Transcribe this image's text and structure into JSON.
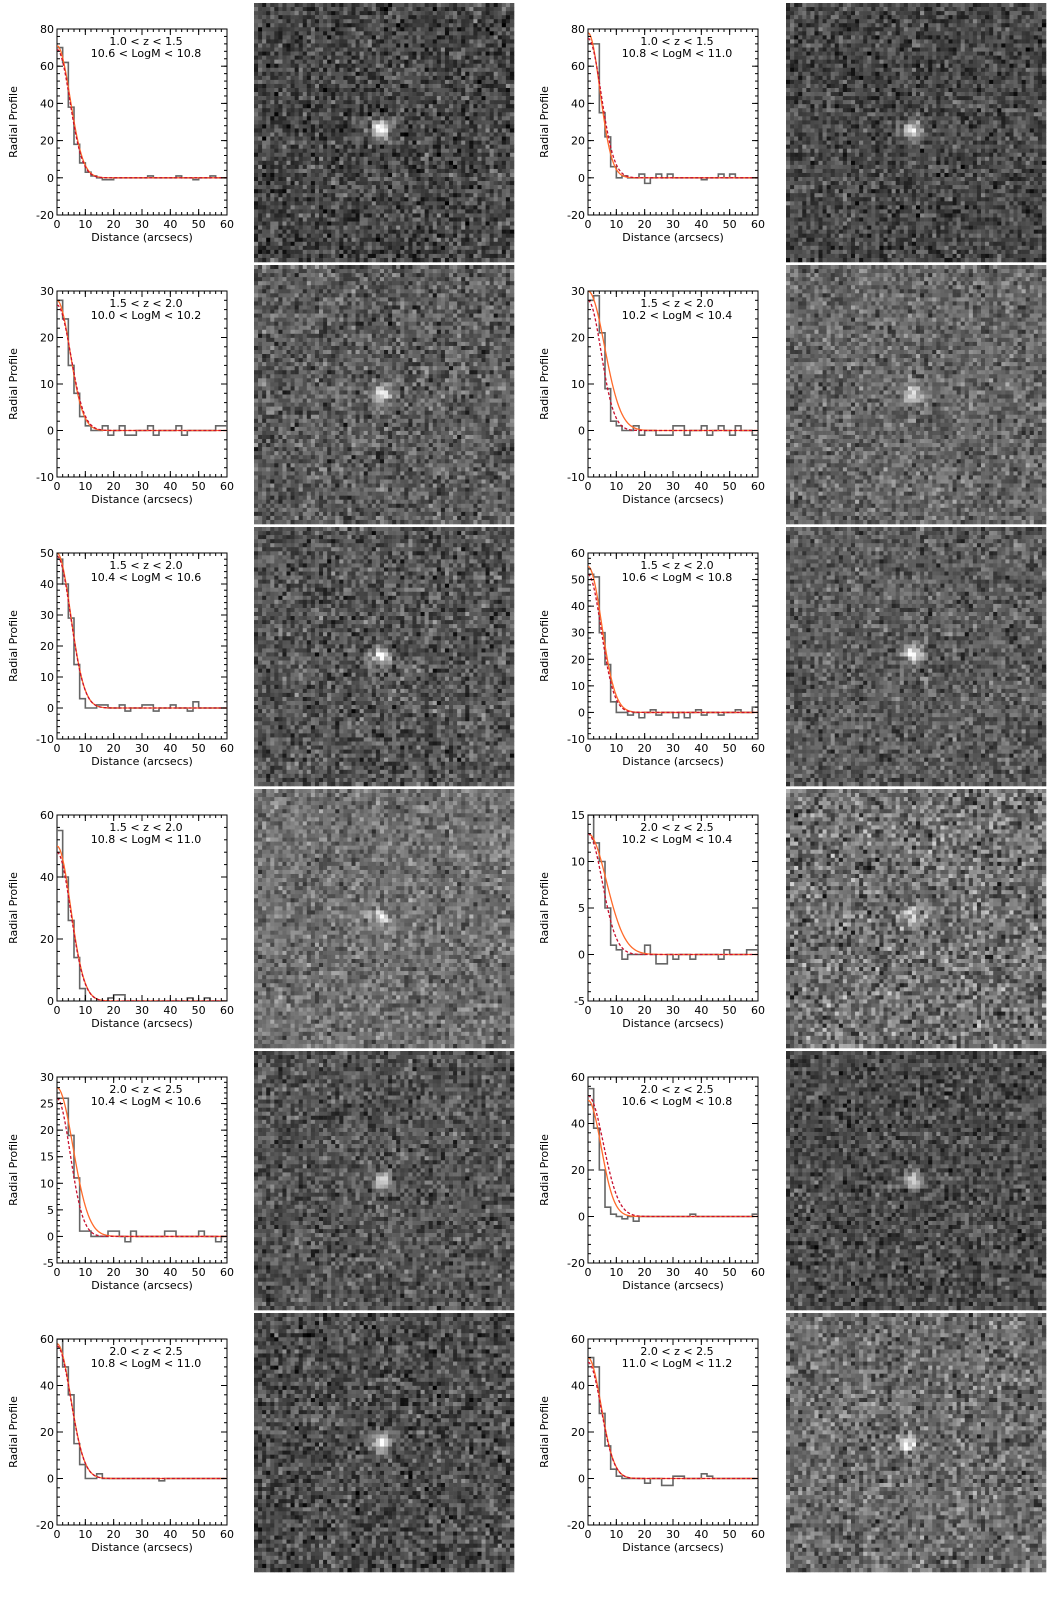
{
  "chart_data": {
    "type": "line",
    "xlabel": "Distance (arcsecs)",
    "ylabel": "Radial Profile",
    "x_ticks": [
      0,
      10,
      20,
      30,
      40,
      50,
      60
    ],
    "xlim": [
      0,
      60
    ],
    "panels": [
      {
        "label_z": "1.0 < z <  1.5",
        "label_m": "10.6 < LogM < 10.8",
        "ylim": [
          -20,
          80
        ],
        "y_ticks": [
          -20,
          0,
          20,
          40,
          60,
          80
        ],
        "histogram": [
          70,
          62,
          38,
          18,
          8,
          3,
          1,
          0,
          -1,
          -1,
          0,
          0,
          0,
          0,
          0,
          0,
          1,
          0,
          0,
          0,
          0,
          1,
          0,
          0,
          -1,
          0,
          0,
          1,
          0,
          0
        ],
        "model_solid": {
          "amplitude": 71,
          "sigma": 4.6
        },
        "model_dashed": {
          "amplitude": 69,
          "sigma": 4.5
        },
        "stamp": {
          "brightness": 0.28,
          "contrast": 0.22,
          "peak": 0.8,
          "source_x": 0.49,
          "source_y": 0.49
        }
      },
      {
        "label_z": "1.0 < z <  1.5",
        "label_m": "10.8 < LogM < 11.0",
        "ylim": [
          -20,
          80
        ],
        "y_ticks": [
          -20,
          0,
          20,
          40,
          60,
          80
        ],
        "histogram": [
          72,
          72,
          35,
          22,
          6,
          0,
          1,
          0,
          0,
          2,
          -3,
          0,
          2,
          0,
          2,
          0,
          0,
          0,
          0,
          0,
          -1,
          0,
          0,
          2,
          0,
          2,
          0,
          0,
          0,
          0
        ],
        "model_solid": {
          "amplitude": 78,
          "sigma": 4.2
        },
        "model_dashed": {
          "amplitude": 75,
          "sigma": 4.6
        },
        "stamp": {
          "brightness": 0.28,
          "contrast": 0.2,
          "peak": 0.7,
          "source_x": 0.49,
          "source_y": 0.49
        }
      },
      {
        "label_z": "1.5 < z <  2.0",
        "label_m": "10.0 < LogM < 10.2",
        "ylim": [
          -10,
          30
        ],
        "y_ticks": [
          -10,
          0,
          10,
          20,
          30
        ],
        "histogram": [
          28,
          24,
          14,
          8,
          3,
          1,
          0,
          0,
          1,
          -1,
          0,
          1,
          -1,
          -1,
          0,
          0,
          1,
          -1,
          0,
          0,
          0,
          1,
          -1,
          0,
          0,
          0,
          0,
          0,
          1,
          1
        ],
        "model_solid": {
          "amplitude": 28,
          "sigma": 4.6
        },
        "model_dashed": {
          "amplitude": 27,
          "sigma": 4.8
        },
        "stamp": {
          "brightness": 0.36,
          "contrast": 0.22,
          "peak": 0.6,
          "source_x": 0.49,
          "source_y": 0.5
        }
      },
      {
        "label_z": "1.5 < z <  2.0",
        "label_m": "10.2 < LogM < 10.4",
        "ylim": [
          -10,
          30
        ],
        "y_ticks": [
          -10,
          0,
          10,
          20,
          30
        ],
        "histogram": [
          28,
          29,
          21,
          9,
          2,
          1,
          0,
          0,
          1,
          -1,
          0,
          0,
          -1,
          -1,
          -1,
          1,
          1,
          -1,
          0,
          0,
          1,
          -1,
          0,
          1,
          0,
          -1,
          1,
          0,
          0,
          -1
        ],
        "model_solid": {
          "amplitude": 30,
          "sigma": 5.8
        },
        "model_dashed": {
          "amplitude": 28,
          "sigma": 4.6
        },
        "stamp": {
          "brightness": 0.4,
          "contrast": 0.2,
          "peak": 0.5,
          "source_x": 0.49,
          "source_y": 0.5
        }
      },
      {
        "label_z": "1.5 < z <  2.0",
        "label_m": "10.4 < LogM < 10.6",
        "ylim": [
          -10,
          50
        ],
        "y_ticks": [
          -10,
          0,
          10,
          20,
          30,
          40,
          50
        ],
        "histogram": [
          48,
          40,
          29,
          14,
          3,
          0,
          0,
          1,
          1,
          0,
          0,
          1,
          -1,
          0,
          0,
          1,
          1,
          -1,
          0,
          0,
          1,
          0,
          0,
          -1,
          2,
          0,
          0,
          0,
          0,
          0
        ],
        "model_solid": {
          "amplitude": 50,
          "sigma": 4.8
        },
        "model_dashed": {
          "amplitude": 49,
          "sigma": 4.8
        },
        "stamp": {
          "brightness": 0.33,
          "contrast": 0.22,
          "peak": 0.7,
          "source_x": 0.49,
          "source_y": 0.5
        }
      },
      {
        "label_z": "1.5 < z <  2.0",
        "label_m": "10.6 < LogM < 10.8",
        "ylim": [
          -10,
          60
        ],
        "y_ticks": [
          -10,
          0,
          10,
          20,
          30,
          40,
          50,
          60
        ],
        "histogram": [
          52,
          51,
          30,
          18,
          4,
          0,
          0,
          -1,
          0,
          -2,
          0,
          1,
          -1,
          0,
          0,
          -2,
          0,
          -2,
          0,
          1,
          -1,
          0,
          0,
          -1,
          0,
          0,
          1,
          0,
          0,
          2
        ],
        "model_solid": {
          "amplitude": 55,
          "sigma": 4.8
        },
        "model_dashed": {
          "amplitude": 52,
          "sigma": 4.6
        },
        "stamp": {
          "brightness": 0.36,
          "contrast": 0.2,
          "peak": 0.6,
          "source_x": 0.49,
          "source_y": 0.49
        }
      },
      {
        "label_z": "1.5 < z <  2.0",
        "label_m": "10.8 < LogM < 11.0",
        "ylim": [
          0,
          60
        ],
        "y_ticks": [
          0,
          20,
          40,
          60
        ],
        "histogram": [
          55,
          40,
          26,
          14,
          4,
          0,
          0,
          0,
          0,
          1,
          2,
          2,
          0,
          0,
          0,
          0,
          0,
          0,
          0,
          0,
          0,
          0,
          0,
          1,
          0,
          0,
          1,
          0,
          0,
          0
        ],
        "model_solid": {
          "amplitude": 50,
          "sigma": 4.8
        },
        "model_dashed": {
          "amplitude": 48,
          "sigma": 4.8
        },
        "stamp": {
          "brightness": 0.44,
          "contrast": 0.2,
          "peak": 0.4,
          "source_x": 0.49,
          "source_y": 0.5
        }
      },
      {
        "label_z": "2.0 < z <  2.5",
        "label_m": "10.2 < LogM < 10.4",
        "ylim": [
          -5,
          15
        ],
        "y_ticks": [
          -5,
          0,
          5,
          10,
          15
        ],
        "histogram": [
          15,
          12,
          10,
          5,
          1,
          0.5,
          -0.5,
          0,
          0,
          0,
          1,
          0,
          -1,
          -1,
          0,
          -0.5,
          0,
          0,
          -0.5,
          0,
          0,
          0,
          0,
          -0.5,
          0.5,
          0,
          0,
          0,
          0.5,
          0.5
        ],
        "model_solid": {
          "amplitude": 13,
          "sigma": 6.5
        },
        "model_dashed": {
          "amplitude": 13,
          "sigma": 5
        },
        "stamp": {
          "brightness": 0.44,
          "contrast": 0.28,
          "peak": 0.4,
          "source_x": 0.49,
          "source_y": 0.49
        }
      },
      {
        "label_z": "2.0 < z <  2.5",
        "label_m": "10.4 < LogM < 10.6",
        "ylim": [
          -5,
          30
        ],
        "y_ticks": [
          -5,
          0,
          5,
          10,
          15,
          20,
          25,
          30
        ],
        "histogram": [
          26,
          26,
          19,
          11,
          1,
          1,
          0,
          0,
          0,
          1,
          1,
          0,
          -1,
          1,
          0,
          0,
          0,
          0,
          0,
          1,
          1,
          0,
          0,
          0,
          0,
          1,
          0,
          0,
          -1,
          0
        ],
        "model_solid": {
          "amplitude": 28,
          "sigma": 5.6
        },
        "model_dashed": {
          "amplitude": 26,
          "sigma": 4.6
        },
        "stamp": {
          "brightness": 0.33,
          "contrast": 0.2,
          "peak": 0.5,
          "source_x": 0.49,
          "source_y": 0.5
        }
      },
      {
        "label_z": "2.0 < z <  2.5",
        "label_m": "10.6 < LogM < 10.8",
        "ylim": [
          -20,
          60
        ],
        "y_ticks": [
          -20,
          0,
          20,
          40,
          60
        ],
        "histogram": [
          55,
          38,
          20,
          4,
          1,
          0,
          -1,
          0,
          -2,
          0,
          0,
          0,
          0,
          0,
          0,
          0,
          0,
          0,
          1,
          0,
          0,
          0,
          0,
          0,
          0,
          0,
          0,
          0,
          0,
          1
        ],
        "model_solid": {
          "amplitude": 50,
          "sigma": 4.6
        },
        "model_dashed": {
          "amplitude": 52,
          "sigma": 5.4
        },
        "stamp": {
          "brightness": 0.3,
          "contrast": 0.2,
          "peak": 0.5,
          "source_x": 0.49,
          "source_y": 0.5
        }
      },
      {
        "label_z": "2.0 < z <  2.5",
        "label_m": "10.8 < LogM < 11.0",
        "ylim": [
          -20,
          60
        ],
        "y_ticks": [
          -20,
          0,
          20,
          40,
          60
        ],
        "histogram": [
          60,
          48,
          36,
          15,
          6,
          0,
          0,
          2,
          0,
          0,
          0,
          0,
          0,
          0,
          0,
          0,
          0,
          0,
          -1,
          0,
          0,
          0,
          0,
          0,
          0,
          0,
          0,
          0,
          0,
          0
        ],
        "model_solid": {
          "amplitude": 58,
          "sigma": 4.8
        },
        "model_dashed": {
          "amplitude": 57,
          "sigma": 4.8
        },
        "stamp": {
          "brightness": 0.3,
          "contrast": 0.22,
          "peak": 0.7,
          "source_x": 0.49,
          "source_y": 0.5
        }
      },
      {
        "label_z": "2.0 < z <  2.5",
        "label_m": "11.0 < LogM < 11.2",
        "ylim": [
          -20,
          60
        ],
        "y_ticks": [
          -20,
          0,
          20,
          40,
          60
        ],
        "histogram": [
          52,
          48,
          28,
          14,
          4,
          1,
          0,
          0,
          0,
          0,
          -2,
          0,
          0,
          -3,
          -3,
          1,
          1,
          0,
          0,
          0,
          2,
          1,
          0,
          0,
          0,
          0,
          0,
          0,
          0,
          0
        ],
        "model_solid": {
          "amplitude": 52,
          "sigma": 4.6
        },
        "model_dashed": {
          "amplitude": 50,
          "sigma": 4.6
        },
        "stamp": {
          "brightness": 0.42,
          "contrast": 0.24,
          "peak": 0.5,
          "source_x": 0.47,
          "source_y": 0.5
        }
      }
    ]
  },
  "colors": {
    "histogram": "#666666",
    "model_solid": "#ff6a2a",
    "model_dashed": "#c8102e",
    "axis": "#000000",
    "separator": "#ffffff"
  }
}
